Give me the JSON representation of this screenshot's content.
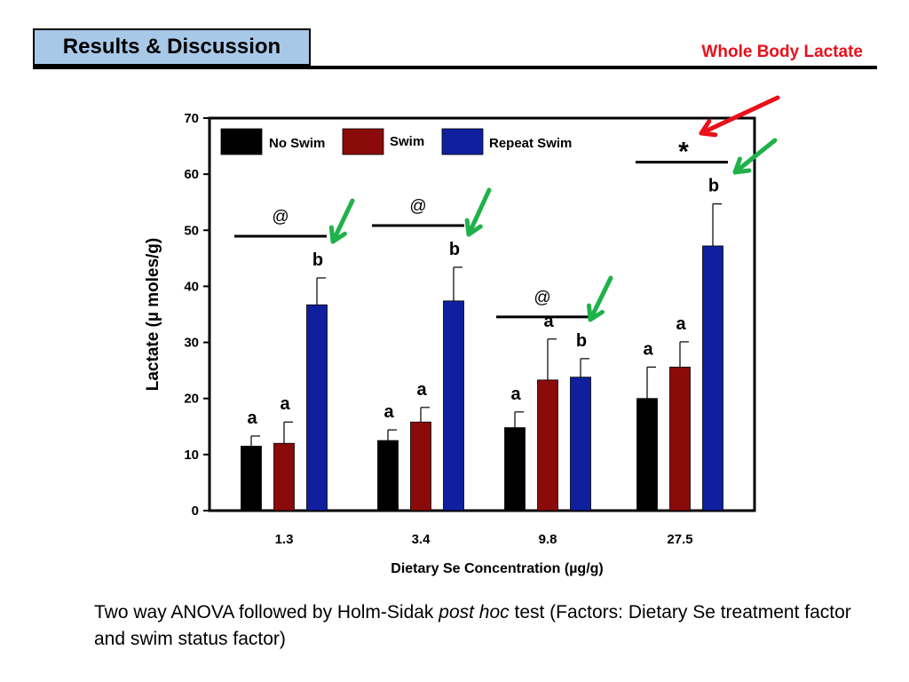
{
  "header": {
    "title": "Results & Discussion",
    "section_label": "Whole Body Lactate"
  },
  "caption": {
    "part1": "Two way ANOVA followed by Holm-Sidak ",
    "italic": "post hoc",
    "part2": " test (Factors: Dietary Se treatment factor and swim status factor)"
  },
  "chart_data": {
    "type": "bar",
    "xlabel": "Dietary Se Concentration (µg/g)",
    "ylabel": "Lactate (µ moles/g)",
    "ylim": [
      0,
      70
    ],
    "yticks": [
      0,
      10,
      20,
      30,
      40,
      50,
      60,
      70
    ],
    "categories": [
      "1.3",
      "3.4",
      "9.8",
      "27.5"
    ],
    "legend_position": "top-left",
    "grid": false,
    "series": [
      {
        "name": "No Swim",
        "color": "#000000",
        "values": [
          11.5,
          12.5,
          14.8,
          20.0
        ],
        "errors": [
          1.8,
          1.9,
          2.8,
          5.6
        ]
      },
      {
        "name": "Swim",
        "color": "#8b0a0a",
        "values": [
          12.0,
          15.8,
          23.3,
          25.6
        ],
        "errors": [
          3.8,
          2.6,
          7.3,
          4.5
        ]
      },
      {
        "name": "Repeat Swim",
        "color": "#0f1f9e",
        "values": [
          36.7,
          37.4,
          23.8,
          47.2
        ],
        "errors": [
          4.8,
          6.0,
          3.3,
          7.5
        ]
      }
    ],
    "significance_letters": [
      [
        "a",
        "a",
        "b"
      ],
      [
        "a",
        "a",
        "b"
      ],
      [
        "a",
        "a",
        "b"
      ],
      [
        "a",
        "a",
        "b"
      ]
    ],
    "group_marks": [
      "@",
      "@",
      "@",
      "*"
    ],
    "annotation_colors": {
      "green_arrow": "#1fb24a",
      "red_arrow": "#e8101a"
    }
  }
}
